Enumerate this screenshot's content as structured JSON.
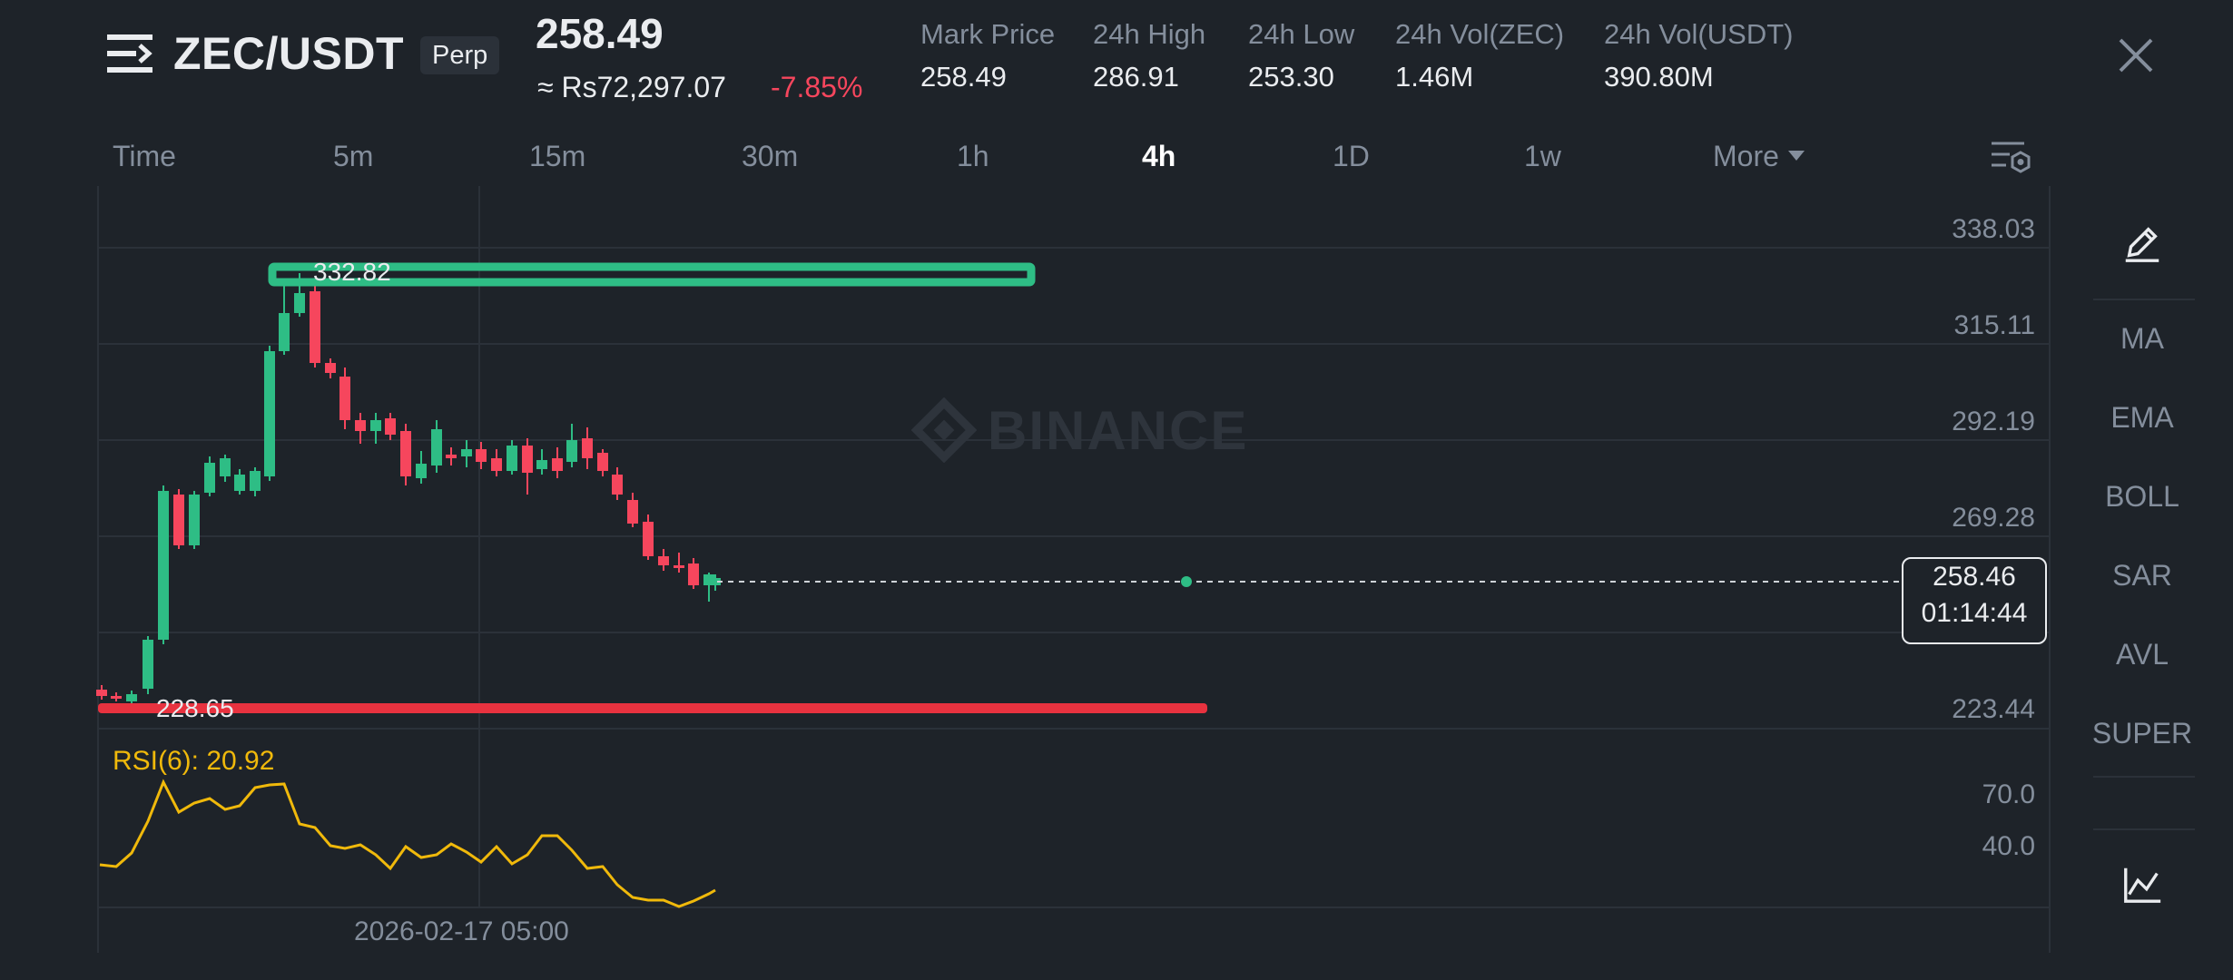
{
  "header": {
    "pair": "ZEC/USDT",
    "badge": "Perp",
    "last_price": "258.49",
    "fiat_price": "≈ Rs72,297.07",
    "change_pct": "-7.85%",
    "stats": [
      {
        "label": "Mark Price",
        "value": "258.49"
      },
      {
        "label": "24h High",
        "value": "286.91"
      },
      {
        "label": "24h Low",
        "value": "253.30"
      },
      {
        "label": "24h Vol(ZEC)",
        "value": "1.46M"
      },
      {
        "label": "24h Vol(USDT)",
        "value": "390.80M"
      }
    ],
    "icons": {
      "menu": "menu-icon",
      "close": "close-icon"
    }
  },
  "timeframes": {
    "items": [
      "Time",
      "5m",
      "15m",
      "30m",
      "1h",
      "4h",
      "1D",
      "1w"
    ],
    "active": "4h",
    "more": "More"
  },
  "chart": {
    "watermark": "BINANCE",
    "price_axis": [
      "338.03",
      "315.11",
      "292.19",
      "269.28",
      "223.44"
    ],
    "rsi_axis": [
      "70.0",
      "40.0"
    ],
    "current_price_tag": "258.46",
    "countdown": "01:14:44",
    "upper_line_label": "332.82",
    "lower_line_label": "228.65",
    "rsi_label": "RSI(6): 20.92",
    "time_label": "2026-02-17 05:00",
    "colors": {
      "up": "#2ebd85",
      "down": "#f6465d",
      "rsi": "#f0b90b",
      "background": "#1e2329",
      "grid": "#2b3139",
      "text_muted": "#848e9c"
    }
  },
  "sidebar": {
    "tools": [
      "MA",
      "EMA",
      "BOLL",
      "SAR",
      "AVL",
      "SUPER"
    ],
    "icons": {
      "draw": "pencil-icon",
      "indicators": "line-chart-icon"
    }
  }
}
